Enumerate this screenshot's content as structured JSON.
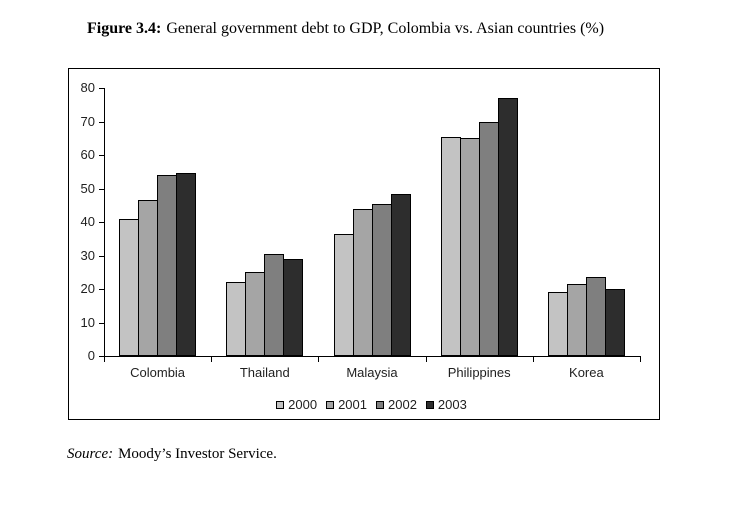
{
  "title": {
    "label": "Figure 3.4:",
    "text": "General government debt to GDP, Colombia vs. Asian countries (%)"
  },
  "source": {
    "label": "Source:",
    "text": "Moody’s Investor Service."
  },
  "chart_data": {
    "type": "bar",
    "title": "General government debt to GDP, Colombia vs. Asian countries (%)",
    "categories": [
      "Colombia",
      "Thailand",
      "Malaysia",
      "Philippines",
      "Korea"
    ],
    "series": [
      {
        "name": "2000",
        "color": "#c3c3c3",
        "values": [
          41,
          22,
          36.5,
          65.5,
          19
        ]
      },
      {
        "name": "2001",
        "color": "#a5a5a5",
        "values": [
          46.5,
          25,
          44,
          65,
          21.5
        ]
      },
      {
        "name": "2002",
        "color": "#7f7f7f",
        "values": [
          54,
          30.5,
          45.5,
          70,
          23.5
        ]
      },
      {
        "name": "2003",
        "color": "#2d2d2d",
        "values": [
          54.5,
          29,
          48.5,
          77,
          20
        ]
      }
    ],
    "xlabel": "",
    "ylabel": "",
    "ylim": [
      0,
      80
    ],
    "yticks": [
      0,
      10,
      20,
      30,
      40,
      50,
      60,
      70,
      80
    ],
    "grid": false,
    "legend_position": "bottom",
    "bar_border_color": "#000000",
    "plot_background": "#ffffff"
  }
}
